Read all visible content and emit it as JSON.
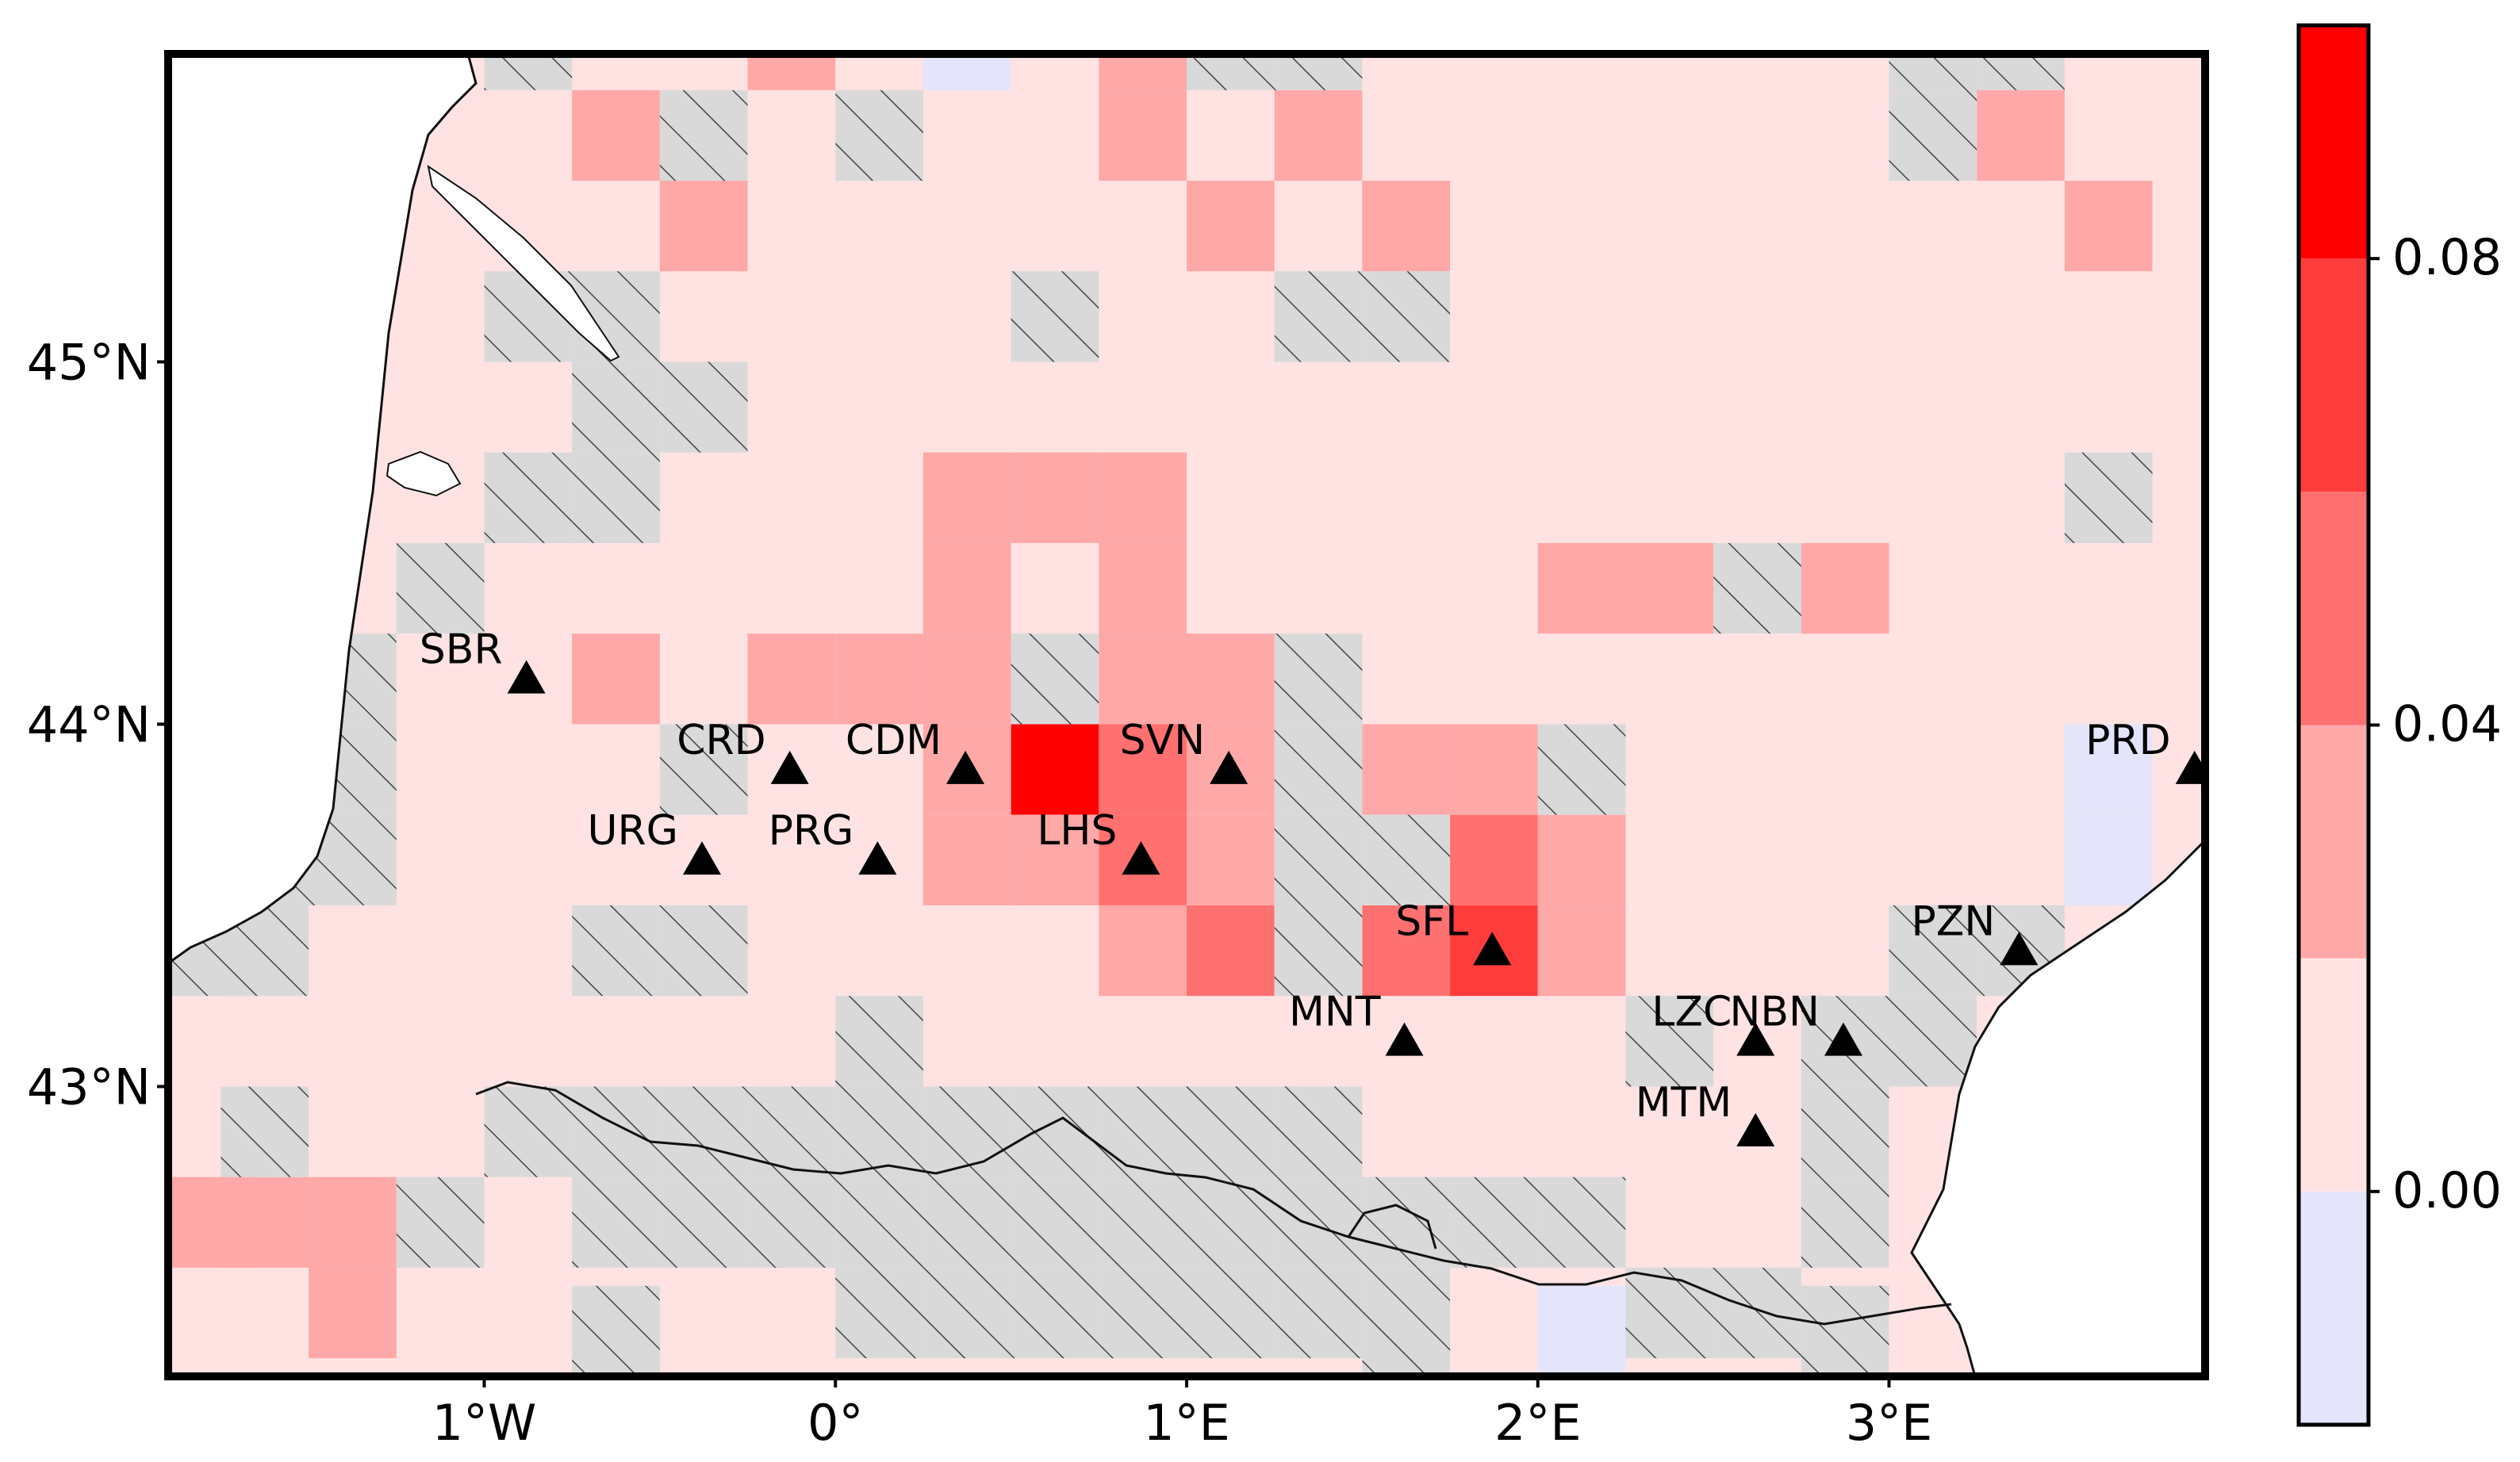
{
  "chart_data": {
    "type": "heatmap",
    "title": "",
    "x_axis": {
      "range": [
        -1.9,
        3.9
      ],
      "ticks": [
        -1,
        0,
        1,
        2,
        3
      ],
      "tick_labels": [
        "1°W",
        "0°",
        "1°E",
        "2°E",
        "3°E"
      ]
    },
    "y_axis": {
      "range": [
        42.2,
        45.85
      ],
      "ticks": [
        43,
        44,
        45
      ],
      "tick_labels": [
        "43°N",
        "44°N",
        "45°N"
      ]
    },
    "colorbar": {
      "range": [
        -0.02,
        0.1
      ],
      "tick_values": [
        0.0,
        0.04,
        0.08
      ],
      "tick_labels": [
        "0.00",
        "0.04",
        "0.08"
      ],
      "colors": [
        "#e4e4fb",
        "#ffe3e3",
        "#ffa8a8",
        "#ff7070",
        "#ff3c3c",
        "#ff0000"
      ],
      "boundaries": [
        -0.02,
        0.0,
        0.02,
        0.04,
        0.06,
        0.08,
        0.1
      ]
    },
    "hatch_meaning_shown": false,
    "stations": [
      {
        "name": "SBR",
        "lon": -0.88,
        "lat": 44.12
      },
      {
        "name": "CRD",
        "lon": -0.13,
        "lat": 43.87
      },
      {
        "name": "CDM",
        "lon": 0.37,
        "lat": 43.87
      },
      {
        "name": "SVN",
        "lon": 1.12,
        "lat": 43.87
      },
      {
        "name": "URG",
        "lon": -0.38,
        "lat": 43.62
      },
      {
        "name": "PRG",
        "lon": 0.12,
        "lat": 43.62
      },
      {
        "name": "LHS",
        "lon": 0.87,
        "lat": 43.62
      },
      {
        "name": "PRD",
        "lon": 3.87,
        "lat": 43.87
      },
      {
        "name": "SFL",
        "lon": 1.87,
        "lat": 43.37
      },
      {
        "name": "PZN",
        "lon": 3.37,
        "lat": 43.37
      },
      {
        "name": "MNT",
        "lon": 1.62,
        "lat": 43.12
      },
      {
        "name": "LZC",
        "lon": 2.62,
        "lat": 43.12
      },
      {
        "name": "NBN",
        "lon": 2.87,
        "lat": 43.12
      },
      {
        "name": "MTM",
        "lon": 2.62,
        "lat": 42.87
      }
    ],
    "cells": [
      {
        "lon0": 0.5,
        "lat0": 43.75,
        "value": 0.09
      },
      {
        "lon0": 0.75,
        "lat0": 43.75,
        "value": 0.05
      },
      {
        "lon0": 0.75,
        "lat0": 43.5,
        "value": 0.05
      },
      {
        "lon0": 1.75,
        "lat0": 43.5,
        "value": 0.05
      },
      {
        "lon0": 1.5,
        "lat0": 43.25,
        "value": 0.05
      },
      {
        "lon0": 1.75,
        "lat0": 43.25,
        "value": 0.07
      },
      {
        "lon0": 1.0,
        "lat0": 43.25,
        "value": 0.05
      },
      {
        "lon0": 0.25,
        "lat0": 44.5,
        "value": 0.03
      },
      {
        "lon0": 0.5,
        "lat0": 44.5,
        "value": 0.03
      },
      {
        "lon0": 0.75,
        "lat0": 44.5,
        "value": 0.03
      },
      {
        "lon0": 0.25,
        "lat0": 44.25,
        "value": 0.03
      },
      {
        "lon0": 0.75,
        "lat0": 44.25,
        "value": 0.03
      },
      {
        "lon0": -0.25,
        "lat0": 44.0,
        "value": 0.03
      },
      {
        "lon0": 0.0,
        "lat0": 44.0,
        "value": 0.03
      },
      {
        "lon0": 0.25,
        "lat0": 44.0,
        "value": 0.03
      },
      {
        "lon0": 0.75,
        "lat0": 44.0,
        "value": 0.03
      },
      {
        "lon0": 1.0,
        "lat0": 44.0,
        "value": 0.03
      },
      {
        "lon0": 0.25,
        "lat0": 43.75,
        "value": 0.03
      },
      {
        "lon0": 1.0,
        "lat0": 43.75,
        "value": 0.03
      },
      {
        "lon0": 0.25,
        "lat0": 43.5,
        "value": 0.03
      },
      {
        "lon0": 0.5,
        "lat0": 43.5,
        "value": 0.03
      },
      {
        "lon0": 1.0,
        "lat0": 43.5,
        "value": 0.03
      },
      {
        "lon0": 0.75,
        "lat0": 43.25,
        "value": 0.03
      },
      {
        "lon0": 1.5,
        "lat0": 43.75,
        "value": 0.03
      },
      {
        "lon0": 1.75,
        "lat0": 43.75,
        "value": 0.03
      },
      {
        "lon0": 2.0,
        "lat0": 43.5,
        "value": 0.03
      },
      {
        "lon0": 2.0,
        "lat0": 43.25,
        "value": 0.03
      },
      {
        "lon0": 2.0,
        "lat0": 44.25,
        "value": 0.03
      },
      {
        "lon0": 2.25,
        "lat0": 44.25,
        "value": 0.03
      },
      {
        "lon0": 2.75,
        "lat0": 44.25,
        "value": 0.03
      },
      {
        "lon0": -0.75,
        "lat0": 44.0,
        "value": 0.03
      },
      {
        "lon0": -0.75,
        "lat0": 45.5,
        "value": 0.03
      },
      {
        "lon0": -0.5,
        "lat0": 45.25,
        "value": 0.03
      },
      {
        "lon0": -0.25,
        "lat0": 45.75,
        "value": 0.03
      },
      {
        "lon0": 0.75,
        "lat0": 45.75,
        "value": 0.03
      },
      {
        "lon0": 0.75,
        "lat0": 45.5,
        "value": 0.03
      },
      {
        "lon0": 1.25,
        "lat0": 45.5,
        "value": 0.03
      },
      {
        "lon0": 1.0,
        "lat0": 45.25,
        "value": 0.03
      },
      {
        "lon0": 1.5,
        "lat0": 45.25,
        "value": 0.03
      },
      {
        "lon0": 3.25,
        "lat0": 45.5,
        "value": 0.03
      },
      {
        "lon0": 3.5,
        "lat0": 45.25,
        "value": 0.03
      },
      {
        "lon0": -1.9,
        "lat0": 42.5,
        "value": 0.03
      },
      {
        "lon0": -1.75,
        "lat0": 42.5,
        "value": 0.03
      },
      {
        "lon0": -1.5,
        "lat0": 42.5,
        "value": 0.03
      },
      {
        "lon0": -1.5,
        "lat0": 42.25,
        "value": 0.03
      },
      {
        "lon0": 3.5,
        "lat0": 43.75,
        "value": -0.01
      },
      {
        "lon0": 3.5,
        "lat0": 43.5,
        "value": -0.01
      },
      {
        "lon0": 0.25,
        "lat0": 45.75,
        "value": -0.01
      },
      {
        "lon0": 2.0,
        "lat0": 42.2,
        "value": -0.01
      }
    ],
    "hatched_cells": [
      {
        "lon0": -1.0,
        "lat0": 45.75
      },
      {
        "lon0": 1.0,
        "lat0": 45.75
      },
      {
        "lon0": 1.25,
        "lat0": 45.75
      },
      {
        "lon0": 3.0,
        "lat0": 45.75
      },
      {
        "lon0": 3.25,
        "lat0": 45.75
      },
      {
        "lon0": -0.5,
        "lat0": 45.5
      },
      {
        "lon0": 0.0,
        "lat0": 45.5
      },
      {
        "lon0": 3.0,
        "lat0": 45.5
      },
      {
        "lon0": 0.5,
        "lat0": 45.0
      },
      {
        "lon0": 1.25,
        "lat0": 45.0
      },
      {
        "lon0": 1.5,
        "lat0": 45.0
      },
      {
        "lon0": -0.75,
        "lat0": 45.0
      },
      {
        "lon0": -1.0,
        "lat0": 45.0
      },
      {
        "lon0": -0.75,
        "lat0": 44.75
      },
      {
        "lon0": -0.5,
        "lat0": 44.75
      },
      {
        "lon0": -1.0,
        "lat0": 44.5
      },
      {
        "lon0": -0.75,
        "lat0": 44.5
      },
      {
        "lon0": 3.5,
        "lat0": 44.5
      },
      {
        "lon0": -1.25,
        "lat0": 44.25
      },
      {
        "lon0": 2.5,
        "lat0": 44.25
      },
      {
        "lon0": -1.5,
        "lat0": 44.0
      },
      {
        "lon0": 0.5,
        "lat0": 44.0
      },
      {
        "lon0": 1.25,
        "lat0": 44.0
      },
      {
        "lon0": -1.5,
        "lat0": 43.75
      },
      {
        "lon0": -0.5,
        "lat0": 43.75
      },
      {
        "lon0": 1.25,
        "lat0": 43.75
      },
      {
        "lon0": 2.0,
        "lat0": 43.75
      },
      {
        "lon0": -1.75,
        "lat0": 43.5
      },
      {
        "lon0": -1.5,
        "lat0": 43.5
      },
      {
        "lon0": 1.25,
        "lat0": 43.5
      },
      {
        "lon0": 1.5,
        "lat0": 43.5
      },
      {
        "lon0": -1.9,
        "lat0": 43.25
      },
      {
        "lon0": -1.75,
        "lat0": 43.25
      },
      {
        "lon0": -0.75,
        "lat0": 43.25
      },
      {
        "lon0": -0.5,
        "lat0": 43.25
      },
      {
        "lon0": 1.25,
        "lat0": 43.25
      },
      {
        "lon0": 3.0,
        "lat0": 43.25
      },
      {
        "lon0": 3.25,
        "lat0": 43.25
      },
      {
        "lon0": 0.0,
        "lat0": 43.0
      },
      {
        "lon0": 2.25,
        "lat0": 43.0
      },
      {
        "lon0": 2.75,
        "lat0": 43.0
      },
      {
        "lon0": 3.0,
        "lat0": 43.0
      },
      {
        "lon0": -1.75,
        "lat0": 42.75
      },
      {
        "lon0": -1.0,
        "lat0": 42.75
      },
      {
        "lon0": -0.75,
        "lat0": 42.75
      },
      {
        "lon0": -0.5,
        "lat0": 42.75
      },
      {
        "lon0": -0.25,
        "lat0": 42.75
      },
      {
        "lon0": 0.0,
        "lat0": 42.75
      },
      {
        "lon0": 0.25,
        "lat0": 42.75
      },
      {
        "lon0": 0.5,
        "lat0": 42.75
      },
      {
        "lon0": 0.75,
        "lat0": 42.75
      },
      {
        "lon0": 1.0,
        "lat0": 42.75
      },
      {
        "lon0": 1.25,
        "lat0": 42.75
      },
      {
        "lon0": 2.75,
        "lat0": 42.75
      },
      {
        "lon0": -1.25,
        "lat0": 42.5
      },
      {
        "lon0": -0.75,
        "lat0": 42.5
      },
      {
        "lon0": -0.5,
        "lat0": 42.5
      },
      {
        "lon0": -0.25,
        "lat0": 42.5
      },
      {
        "lon0": 0.0,
        "lat0": 42.5
      },
      {
        "lon0": 0.25,
        "lat0": 42.5
      },
      {
        "lon0": 0.5,
        "lat0": 42.5
      },
      {
        "lon0": 0.75,
        "lat0": 42.5
      },
      {
        "lon0": 1.0,
        "lat0": 42.5
      },
      {
        "lon0": 1.25,
        "lat0": 42.5
      },
      {
        "lon0": 1.5,
        "lat0": 42.5
      },
      {
        "lon0": 1.75,
        "lat0": 42.5
      },
      {
        "lon0": 2.0,
        "lat0": 42.5
      },
      {
        "lon0": 2.75,
        "lat0": 42.5
      },
      {
        "lon0": 0.0,
        "lat0": 42.25
      },
      {
        "lon0": 0.25,
        "lat0": 42.25
      },
      {
        "lon0": 0.5,
        "lat0": 42.25
      },
      {
        "lon0": 0.75,
        "lat0": 42.25
      },
      {
        "lon0": 1.0,
        "lat0": 42.25
      },
      {
        "lon0": 1.25,
        "lat0": 42.25
      },
      {
        "lon0": 1.5,
        "lat0": 42.25
      },
      {
        "lon0": 2.25,
        "lat0": 42.25
      },
      {
        "lon0": 2.5,
        "lat0": 42.25
      },
      {
        "lon0": -0.75,
        "lat0": 42.2
      },
      {
        "lon0": 1.5,
        "lat0": 42.2
      },
      {
        "lon0": 2.75,
        "lat0": 42.2
      }
    ],
    "background_value": 0.01
  }
}
